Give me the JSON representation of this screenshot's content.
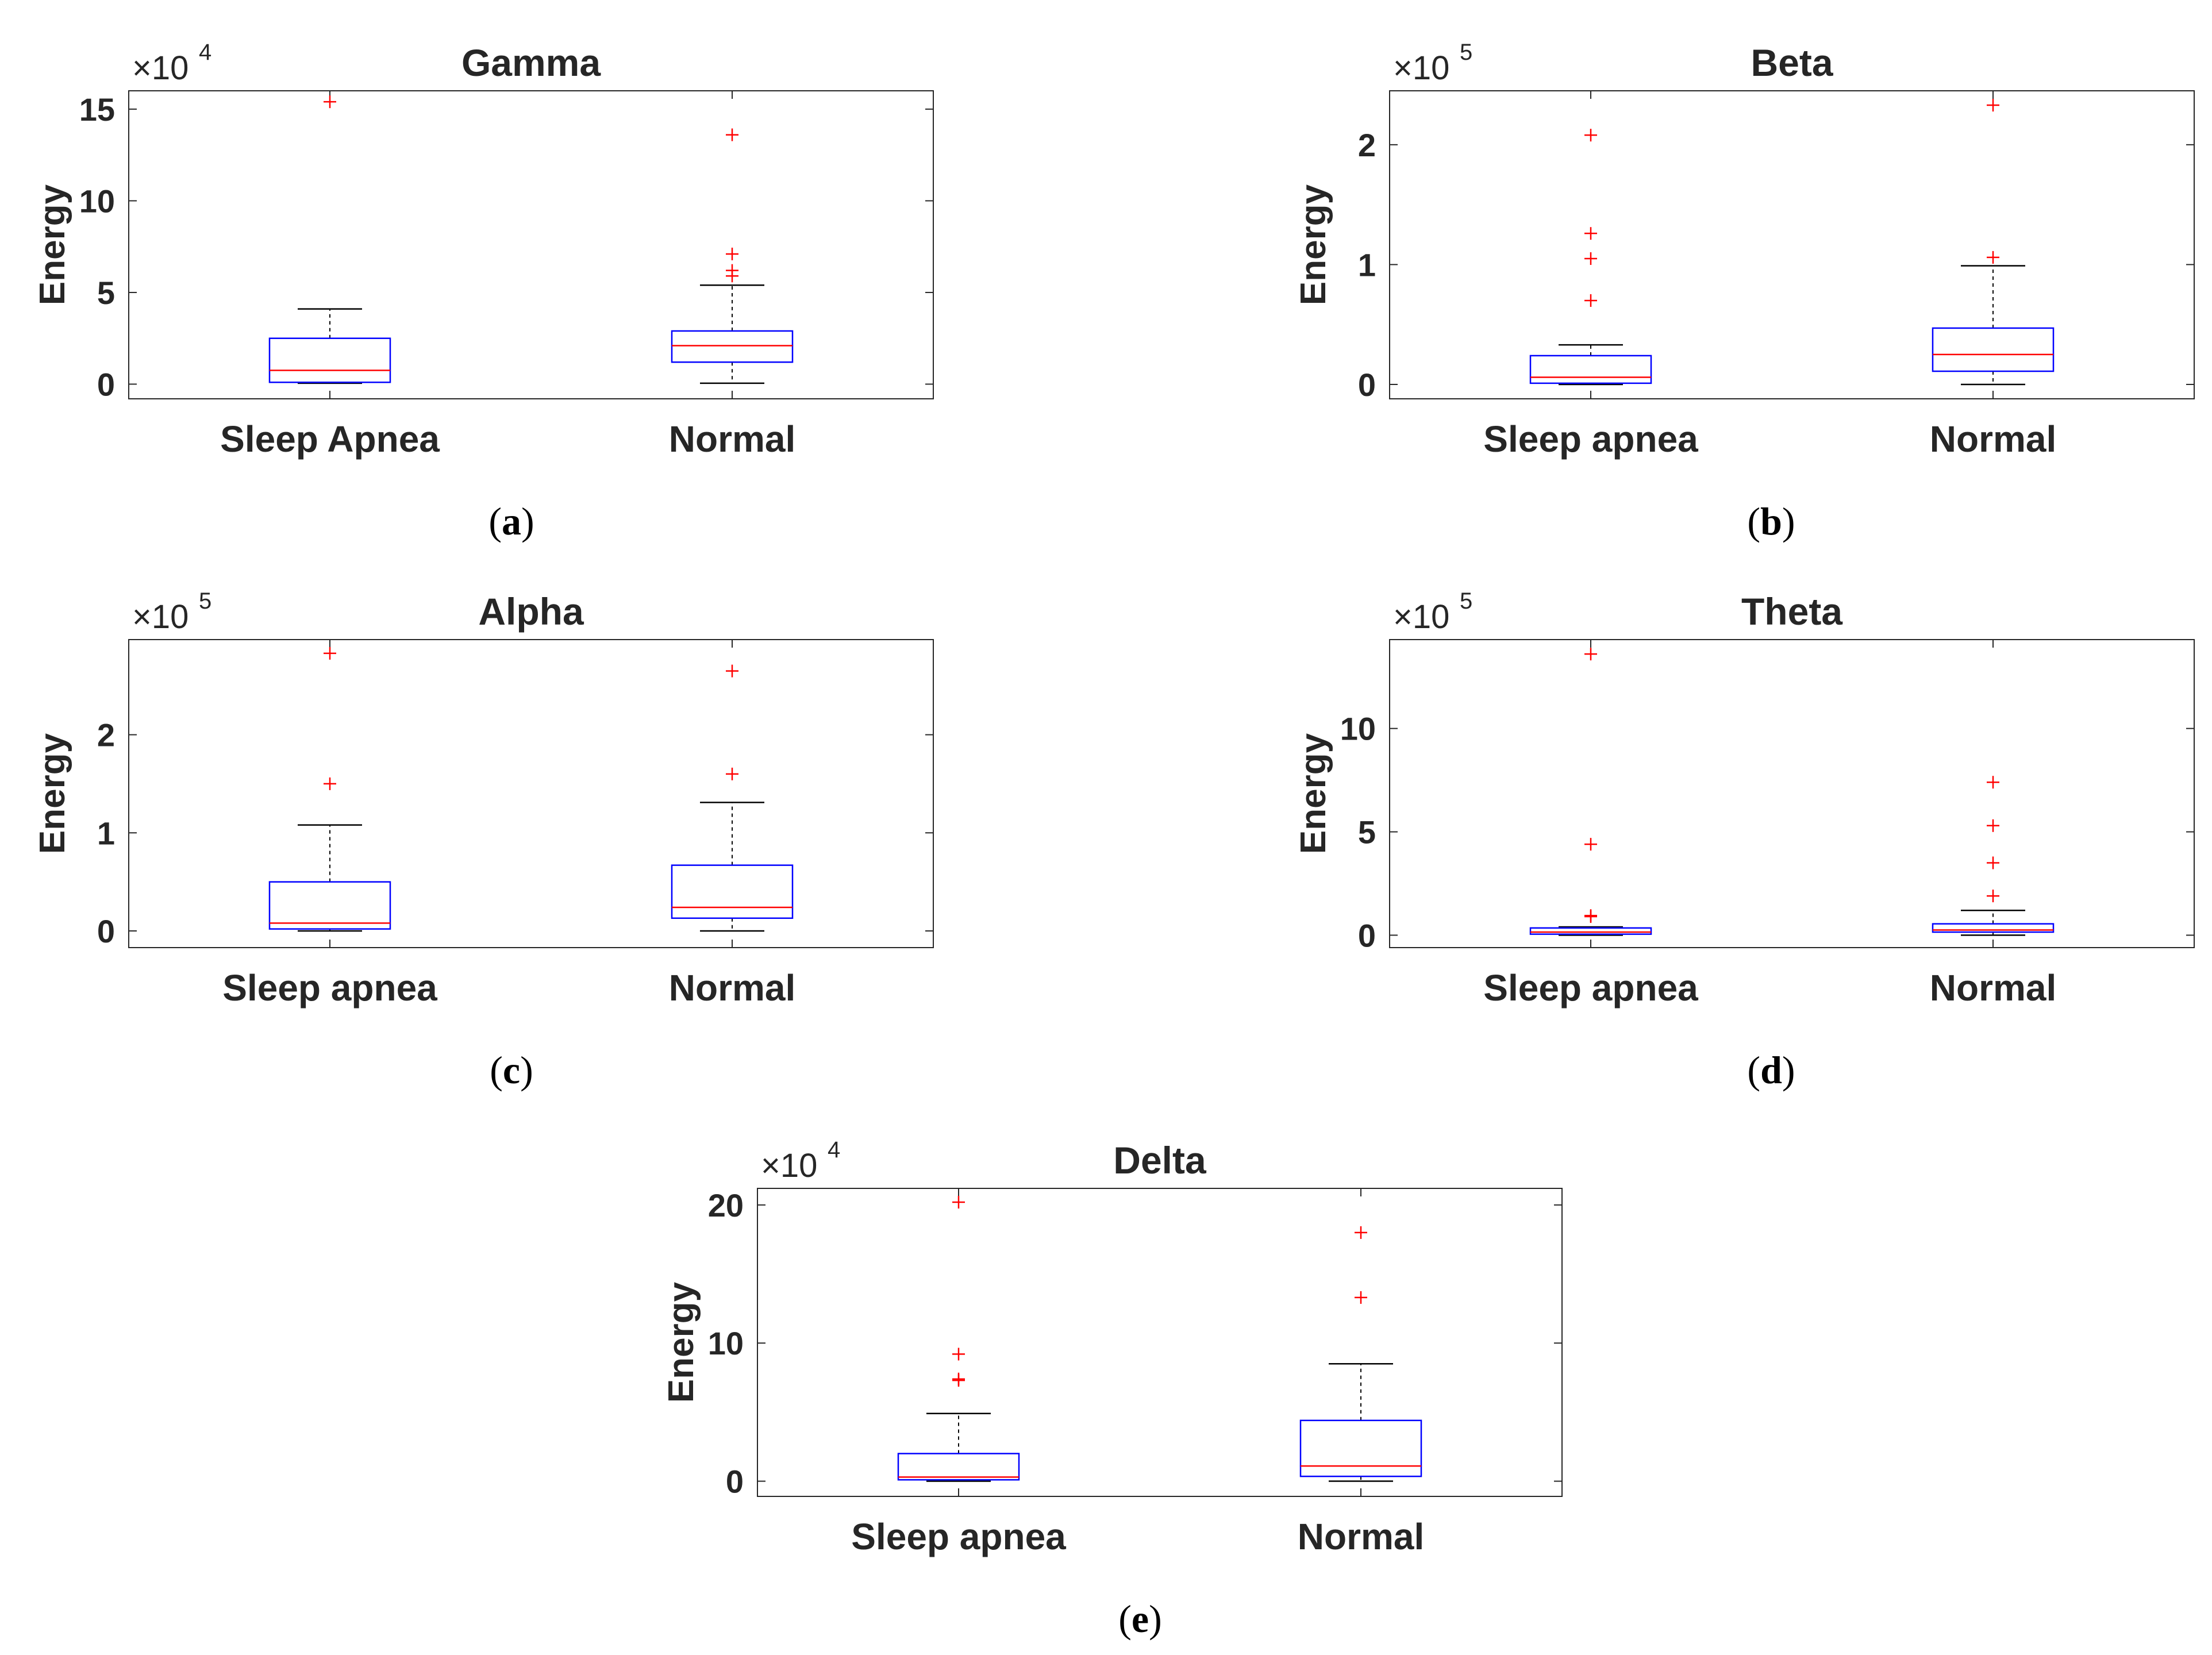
{
  "chart_data": [
    {
      "id": "a",
      "type": "box",
      "title": "Gamma",
      "ylabel": "Energy",
      "exponent_base": "×10",
      "exponent_power": "4",
      "ylim": [
        -0.8,
        16
      ],
      "yticks": [
        0,
        5,
        10,
        15
      ],
      "ytick_labels": [
        "0",
        "5",
        "10",
        "15"
      ],
      "caption_letter": "a",
      "categories": [
        "Sleep Apnea",
        "Normal"
      ],
      "boxes": [
        {
          "category": "Sleep Apnea",
          "whisker_low": 0.05,
          "q1": 0.1,
          "median": 0.75,
          "q3": 2.5,
          "whisker_high": 4.1,
          "outliers": [
            15.4
          ]
        },
        {
          "category": "Normal",
          "whisker_low": 0.05,
          "q1": 1.2,
          "median": 2.1,
          "q3": 2.9,
          "whisker_high": 5.4,
          "outliers": [
            5.9,
            6.2,
            7.1,
            13.6
          ]
        }
      ]
    },
    {
      "id": "b",
      "type": "box",
      "title": "Beta",
      "ylabel": "Energy",
      "exponent_base": "×10",
      "exponent_power": "5",
      "ylim": [
        -0.12,
        2.45
      ],
      "yticks": [
        0,
        1,
        2
      ],
      "ytick_labels": [
        "0",
        "1",
        "2"
      ],
      "caption_letter": "b",
      "categories": [
        "Sleep apnea",
        "Normal"
      ],
      "boxes": [
        {
          "category": "Sleep apnea",
          "whisker_low": 0.0,
          "q1": 0.01,
          "median": 0.06,
          "q3": 0.24,
          "whisker_high": 0.33,
          "outliers": [
            0.7,
            1.05,
            1.26,
            2.08
          ]
        },
        {
          "category": "Normal",
          "whisker_low": 0.0,
          "q1": 0.11,
          "median": 0.25,
          "q3": 0.47,
          "whisker_high": 0.99,
          "outliers": [
            1.06,
            2.33
          ]
        }
      ]
    },
    {
      "id": "c",
      "type": "box",
      "title": "Alpha",
      "ylabel": "Energy",
      "exponent_base": "×10",
      "exponent_power": "5",
      "ylim": [
        -0.17,
        2.97
      ],
      "yticks": [
        0,
        1,
        2
      ],
      "ytick_labels": [
        "0",
        "1",
        "2"
      ],
      "caption_letter": "c",
      "categories": [
        "Sleep apnea",
        "Normal"
      ],
      "boxes": [
        {
          "category": "Sleep apnea",
          "whisker_low": 0.0,
          "q1": 0.02,
          "median": 0.08,
          "q3": 0.5,
          "whisker_high": 1.08,
          "outliers": [
            1.5,
            2.83
          ]
        },
        {
          "category": "Normal",
          "whisker_low": 0.0,
          "q1": 0.13,
          "median": 0.24,
          "q3": 0.67,
          "whisker_high": 1.31,
          "outliers": [
            1.6,
            2.65
          ]
        }
      ]
    },
    {
      "id": "d",
      "type": "box",
      "title": "Theta",
      "ylabel": "Energy",
      "exponent_base": "×10",
      "exponent_power": "5",
      "ylim": [
        -0.6,
        14.3
      ],
      "yticks": [
        0,
        5,
        10
      ],
      "ytick_labels": [
        "0",
        "5",
        "10"
      ],
      "caption_letter": "d",
      "categories": [
        "Sleep apnea",
        "Normal"
      ],
      "boxes": [
        {
          "category": "Sleep apnea",
          "whisker_low": 0.0,
          "q1": 0.05,
          "median": 0.15,
          "q3": 0.35,
          "whisker_high": 0.4,
          "outliers": [
            0.9,
            0.95,
            4.4,
            13.6
          ]
        },
        {
          "category": "Normal",
          "whisker_low": 0.0,
          "q1": 0.15,
          "median": 0.25,
          "q3": 0.55,
          "whisker_high": 1.2,
          "outliers": [
            1.9,
            3.5,
            5.3,
            7.4
          ]
        }
      ]
    },
    {
      "id": "e",
      "type": "box",
      "title": "Delta",
      "ylabel": "Energy",
      "exponent_base": "×10",
      "exponent_power": "4",
      "ylim": [
        -1.1,
        21.2
      ],
      "yticks": [
        0,
        10,
        20
      ],
      "ytick_labels": [
        "0",
        "10",
        "20"
      ],
      "caption_letter": "e",
      "categories": [
        "Sleep apnea",
        "Normal"
      ],
      "boxes": [
        {
          "category": "Sleep apnea",
          "whisker_low": 0.0,
          "q1": 0.1,
          "median": 0.3,
          "q3": 2.0,
          "whisker_high": 4.9,
          "outliers": [
            7.3,
            7.4,
            9.2,
            20.2
          ]
        },
        {
          "category": "Normal",
          "whisker_low": 0.0,
          "q1": 0.35,
          "median": 1.1,
          "q3": 4.4,
          "whisker_high": 8.5,
          "outliers": [
            13.3,
            18.0
          ]
        }
      ]
    }
  ]
}
